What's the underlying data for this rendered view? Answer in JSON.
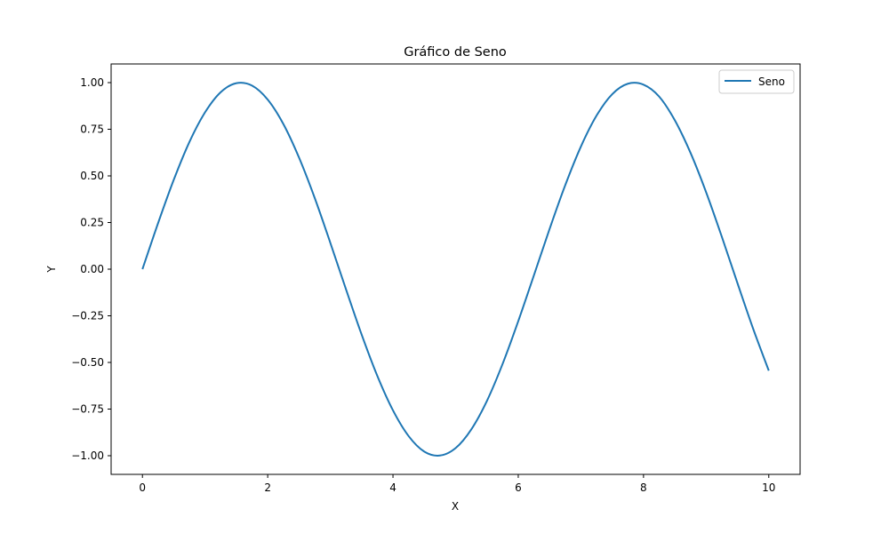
{
  "chart_data": {
    "type": "line",
    "title": "Gráfico de Seno",
    "xlabel": "X",
    "ylabel": "Y",
    "xlim": [
      -0.5,
      10.5
    ],
    "ylim": [
      -1.1,
      1.1
    ],
    "x_ticks": [
      0,
      2,
      4,
      6,
      8,
      10
    ],
    "x_tick_labels": [
      "0",
      "2",
      "4",
      "6",
      "8",
      "10"
    ],
    "y_ticks": [
      1.0,
      0.75,
      0.5,
      0.25,
      0.0,
      -0.25,
      -0.5,
      -0.75,
      -1.0
    ],
    "y_tick_labels": [
      "1.00",
      "0.75",
      "0.50",
      "0.25",
      "0.00",
      "−0.25",
      "−0.50",
      "−0.75",
      "−1.00"
    ],
    "grid": false,
    "legend_position": "top-right",
    "series": [
      {
        "name": "Seno",
        "color": "#1f77b4",
        "x": [
          0,
          0.25,
          0.5,
          0.75,
          1,
          1.25,
          1.5,
          1.75,
          2,
          2.25,
          2.5,
          2.75,
          3,
          3.25,
          3.5,
          3.75,
          4,
          4.25,
          4.5,
          4.75,
          5,
          5.25,
          5.5,
          5.75,
          6,
          6.25,
          6.5,
          6.75,
          7,
          7.25,
          7.5,
          7.75,
          8,
          8.25,
          8.5,
          8.75,
          9,
          9.25,
          9.5,
          9.75,
          10
        ],
        "values": [
          0,
          0.247,
          0.479,
          0.682,
          0.841,
          0.949,
          0.997,
          0.984,
          0.909,
          0.778,
          0.598,
          0.382,
          0.141,
          -0.108,
          -0.351,
          -0.572,
          -0.757,
          -0.895,
          -0.978,
          -0.999,
          -0.959,
          -0.859,
          -0.706,
          -0.508,
          -0.279,
          -0.033,
          0.215,
          0.45,
          0.657,
          0.823,
          0.938,
          0.994,
          0.989,
          0.925,
          0.798,
          0.624,
          0.412,
          0.174,
          -0.075,
          -0.319,
          -0.544
        ]
      }
    ]
  }
}
